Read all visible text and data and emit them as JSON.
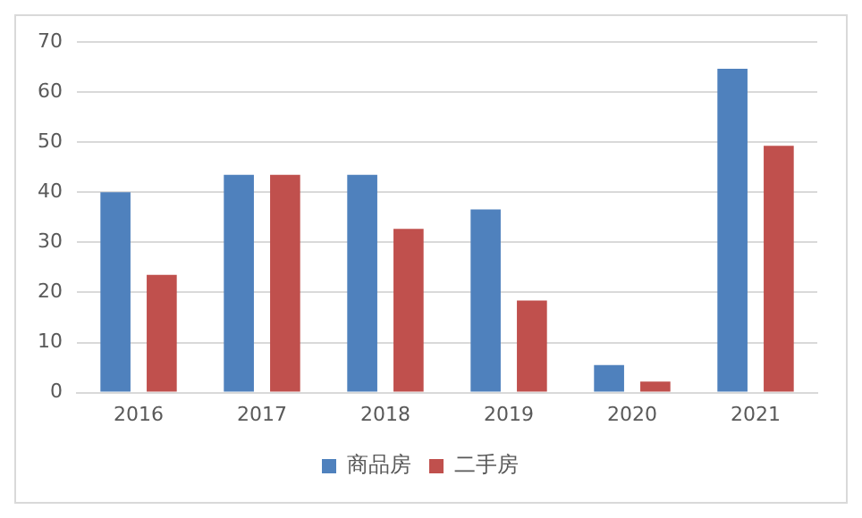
{
  "chart_data": {
    "type": "bar",
    "categories": [
      "2016",
      "2017",
      "2018",
      "2019",
      "2020",
      "2021"
    ],
    "series": [
      {
        "name": "商品房",
        "color": "#4f81bd",
        "values": [
          40,
          43.5,
          43.5,
          36.6,
          5.5,
          64.7
        ]
      },
      {
        "name": "二手房",
        "color": "#c0504d",
        "values": [
          23.5,
          43.5,
          32.7,
          18.4,
          2.2,
          49.3
        ]
      }
    ],
    "ylim": [
      0,
      70
    ],
    "yticks": [
      0,
      10,
      20,
      30,
      40,
      50,
      60,
      70
    ],
    "grid": "y",
    "legend": "bottom"
  }
}
